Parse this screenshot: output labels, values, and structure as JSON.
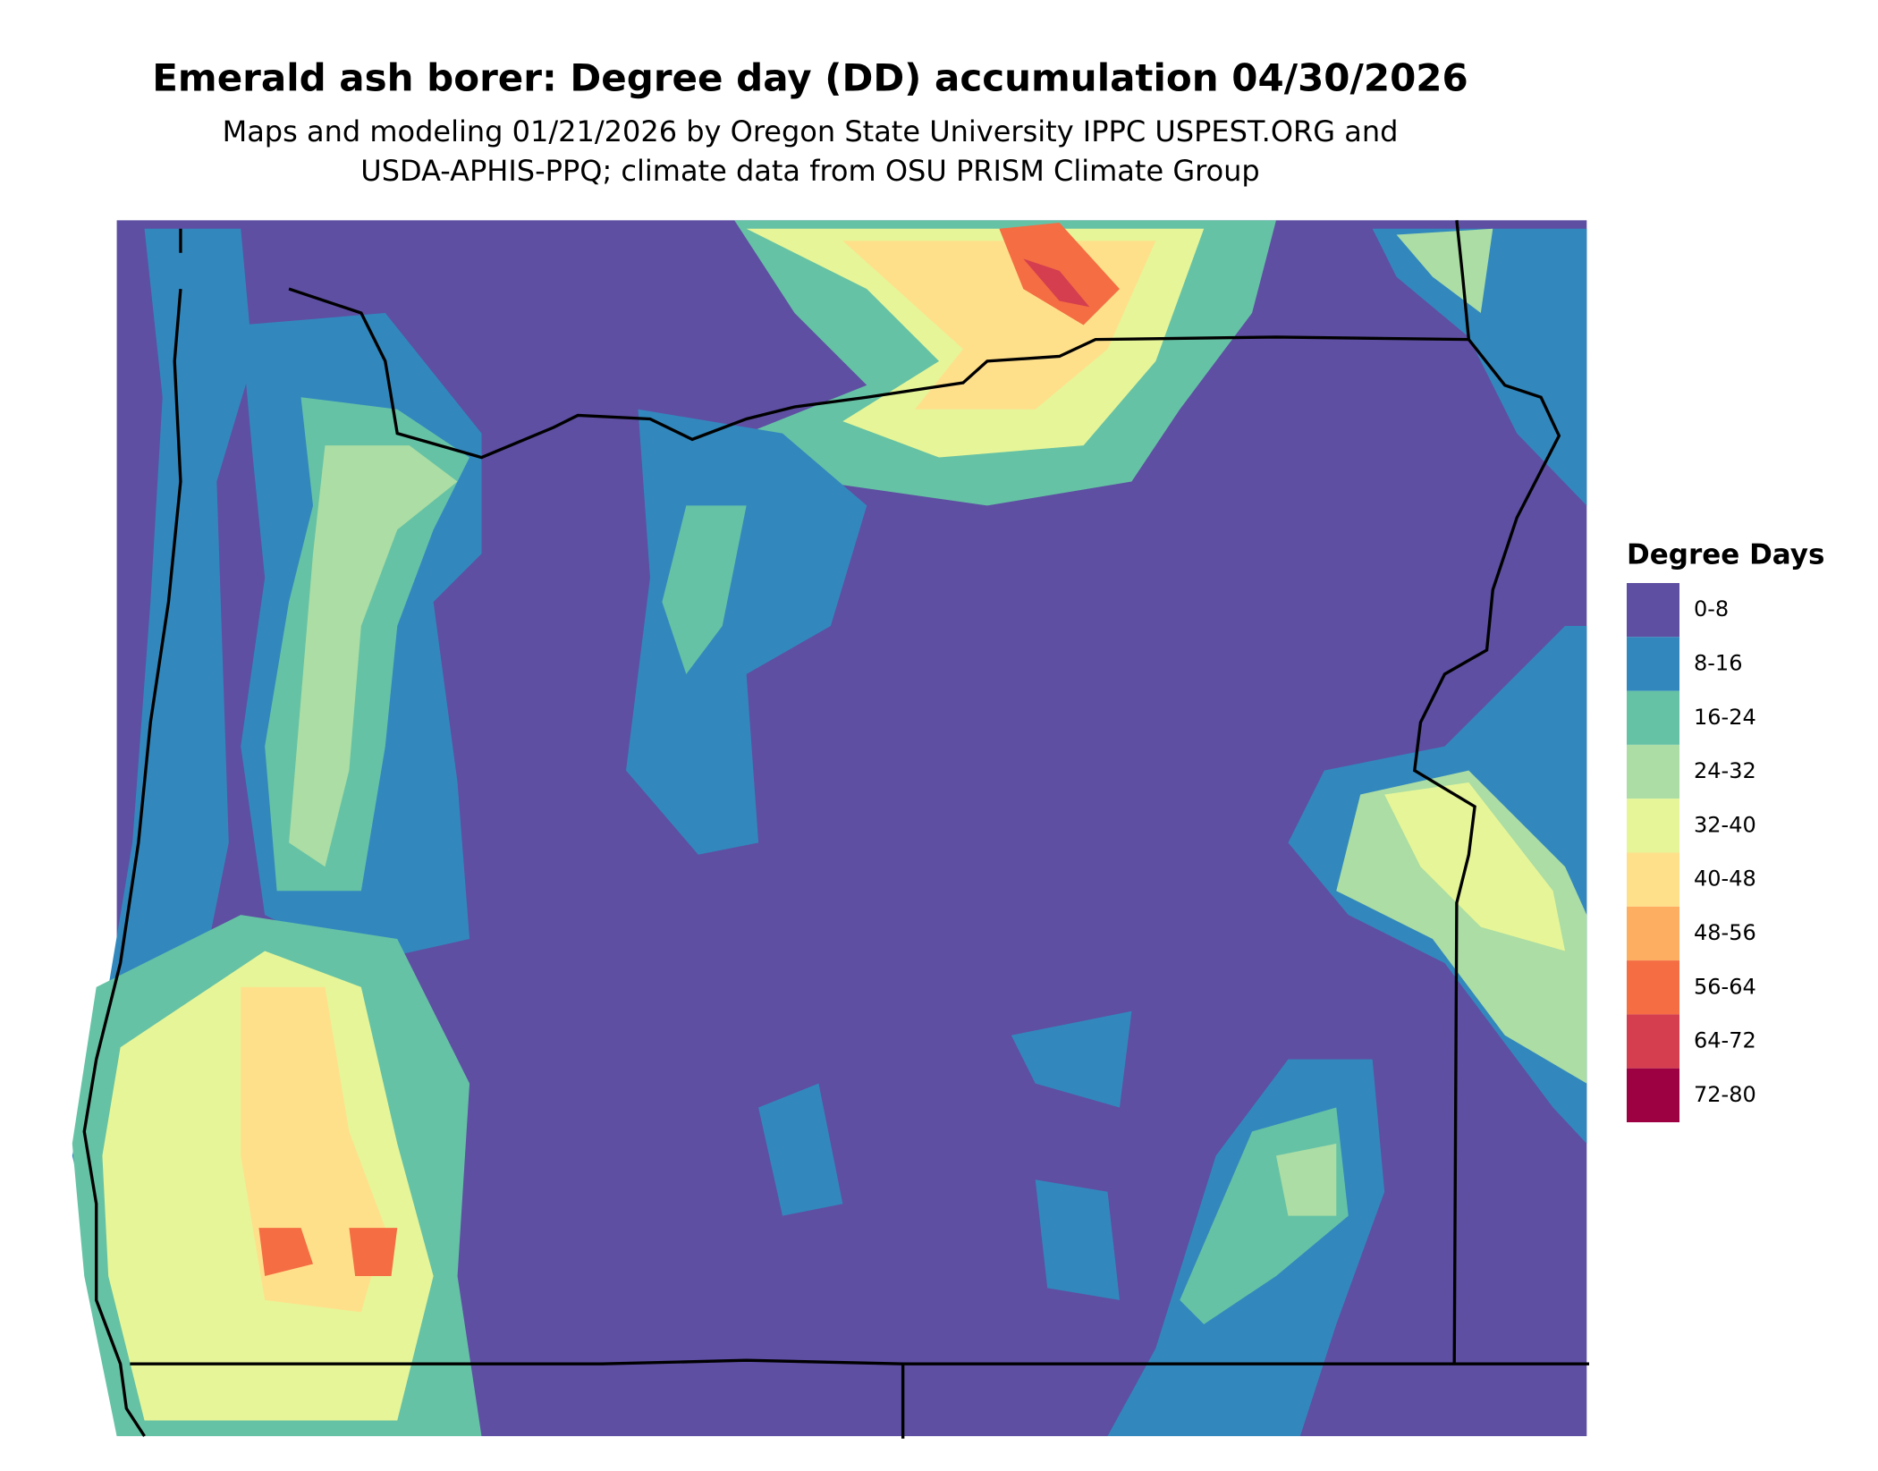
{
  "title": "Emerald ash borer: Degree day (DD) accumulation 04/30/2026",
  "subtitle": [
    "Maps and modeling 01/21/2026 by Oregon State University IPPC USPEST.ORG and",
    "USDA-APHIS-PPQ; climate data from OSU PRISM Climate Group"
  ],
  "legend": {
    "title": "Degree Days",
    "items": [
      {
        "label": "0-8",
        "color": "#5E4FA2"
      },
      {
        "label": "8-16",
        "color": "#3288BD"
      },
      {
        "label": "16-24",
        "color": "#66C2A5"
      },
      {
        "label": "24-32",
        "color": "#ABDDA4"
      },
      {
        "label": "32-40",
        "color": "#E6F598"
      },
      {
        "label": "40-48",
        "color": "#FEE08B"
      },
      {
        "label": "48-56",
        "color": "#FDAE61"
      },
      {
        "label": "56-64",
        "color": "#F46D43"
      },
      {
        "label": "64-72",
        "color": "#D53E4F"
      },
      {
        "label": "72-80",
        "color": "#9E0142"
      }
    ]
  }
}
